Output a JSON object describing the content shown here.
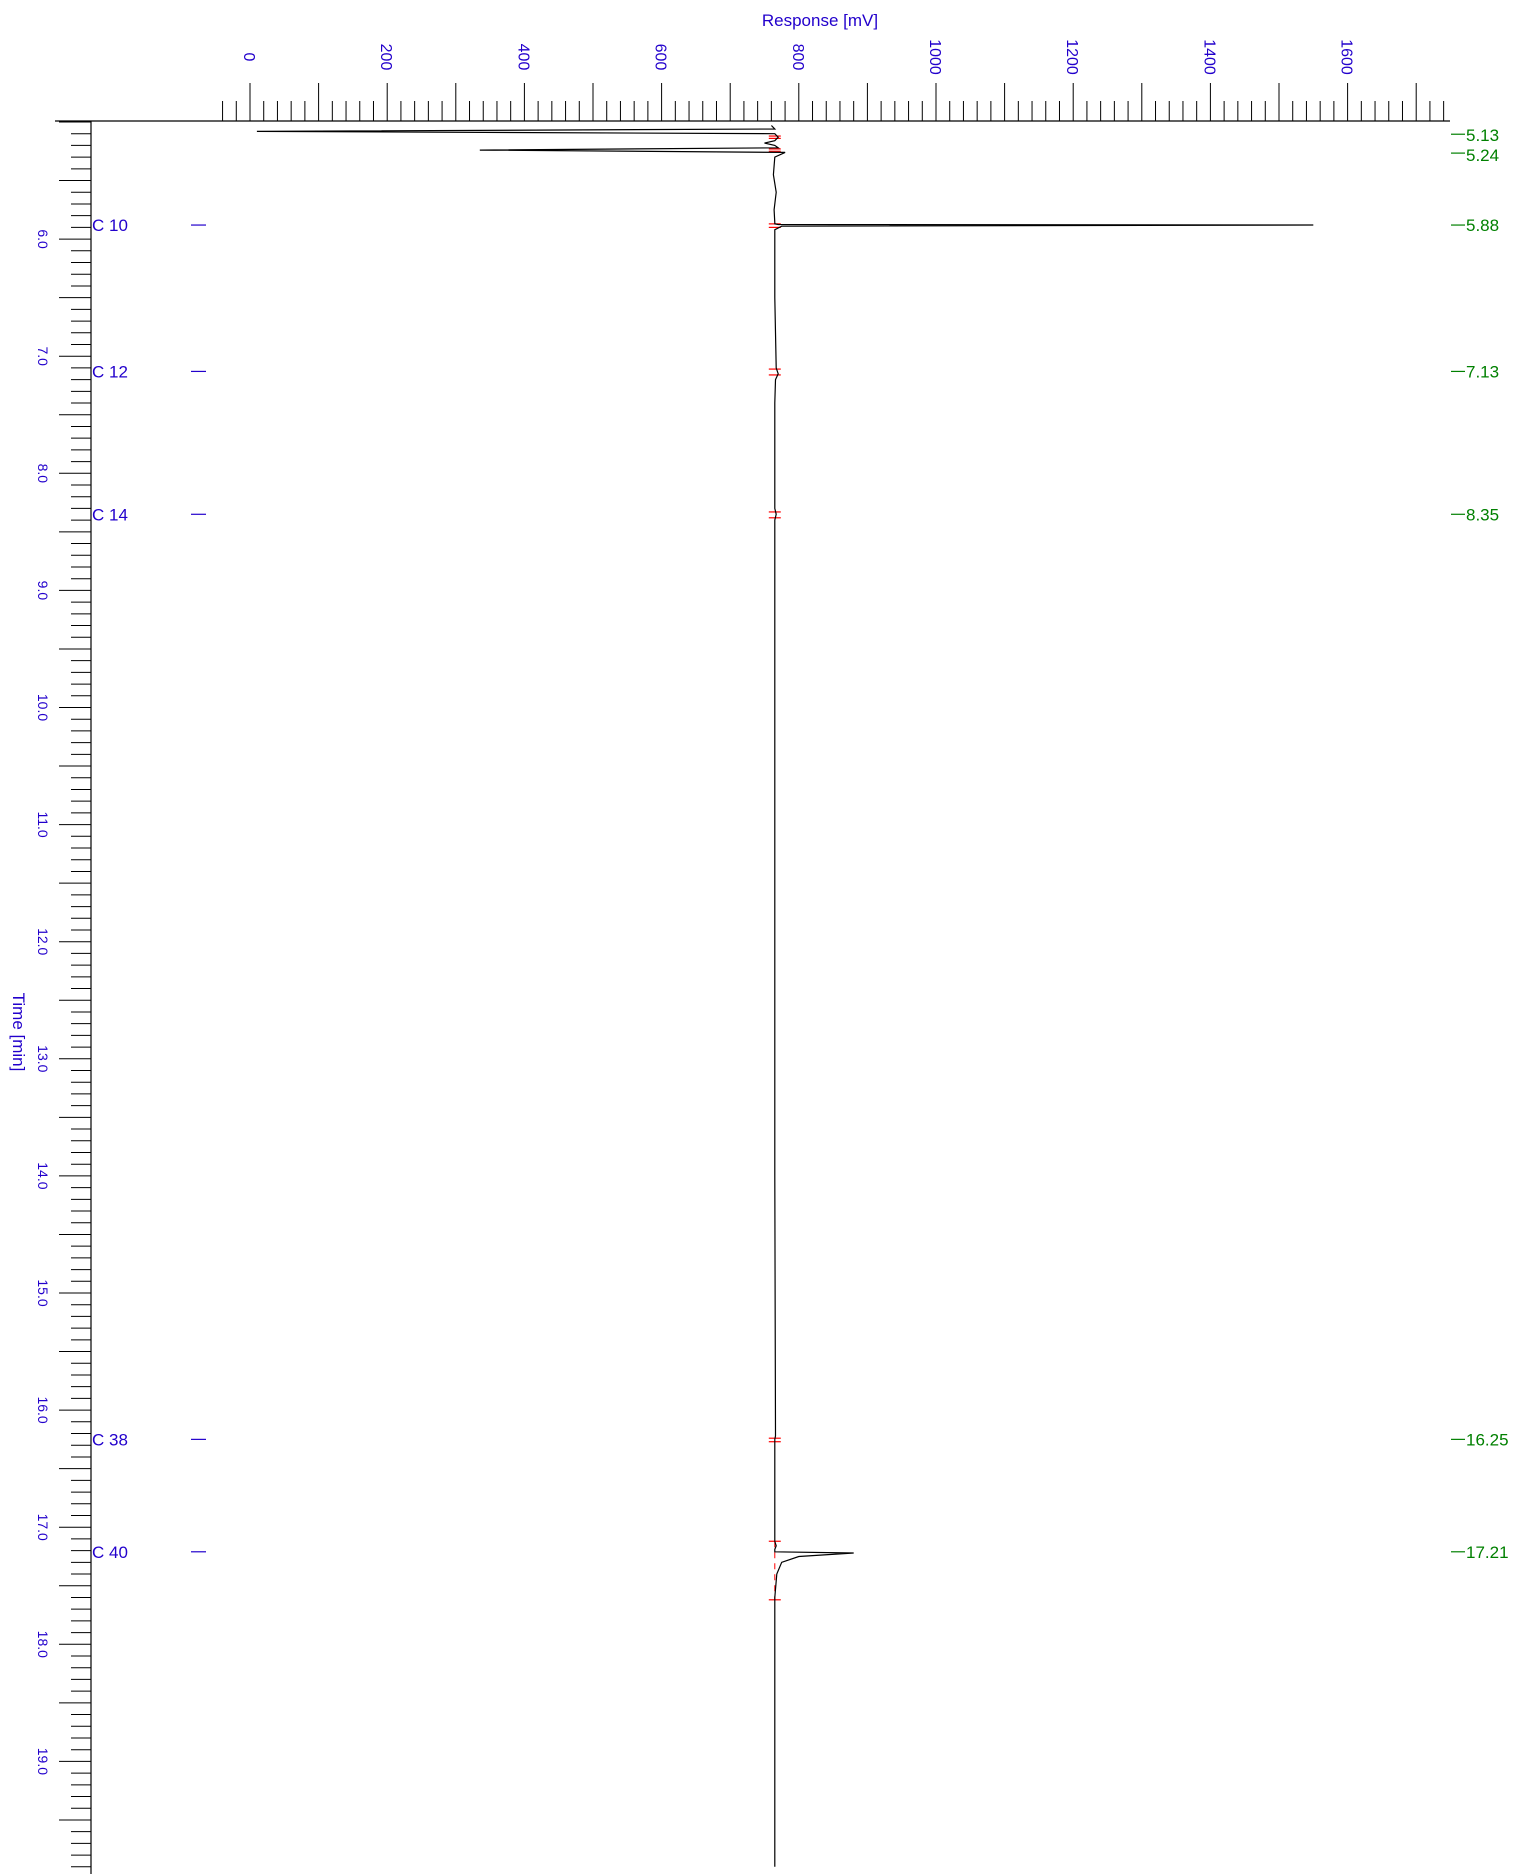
{
  "chart_data": {
    "type": "line",
    "orientation": "vertical-time",
    "x_axis": {
      "title": "Response [mV]",
      "range": [
        -40,
        1750
      ],
      "ticks": [
        0,
        200,
        400,
        600,
        800,
        1000,
        1200,
        1400,
        1600
      ],
      "tick_labels": [
        "0",
        "200",
        "400",
        "600",
        "800",
        "1000",
        "1200",
        "1400",
        "1600"
      ]
    },
    "y_axis": {
      "title": "Time [min]",
      "range": [
        5.0,
        19.9
      ],
      "ticks": [
        6,
        7,
        8,
        9,
        10,
        11,
        12,
        13,
        14,
        15,
        16,
        17,
        18,
        19
      ],
      "tick_labels": [
        "6.0",
        "7.0",
        "8.0",
        "9.0",
        "10.0",
        "11.0",
        "12.0",
        "13.0",
        "14.0",
        "15.0",
        "16.0",
        "17.0",
        "18.0",
        "19.0"
      ]
    },
    "baseline_mv": 765,
    "compounds": [
      {
        "label": "C 10",
        "time": 5.88
      },
      {
        "label": "C 12",
        "time": 7.13
      },
      {
        "label": "C 14",
        "time": 8.35
      },
      {
        "label": "C 38",
        "time": 16.25
      },
      {
        "label": "C 40",
        "time": 17.21
      }
    ],
    "peak_labels": [
      "5.13",
      "5.24",
      "5.88",
      "7.13",
      "8.35",
      "16.25",
      "17.21"
    ],
    "peak_times": [
      5.13,
      5.24,
      5.88,
      7.13,
      8.35,
      16.25,
      17.21
    ],
    "series": [
      {
        "x": [
          760,
          765,
          10,
          765,
          770,
          765,
          750,
          765,
          770,
          335,
          780,
          765,
          763,
          767,
          764,
          765,
          765,
          770,
          1550,
          775,
          765,
          765,
          767,
          770,
          766,
          765,
          765,
          767,
          765,
          765,
          765,
          766,
          765,
          765,
          765,
          765,
          767,
          765,
          765,
          765,
          880,
          800,
          775,
          768,
          765,
          765,
          765
        ],
        "y": [
          5.03,
          5.06,
          5.08,
          5.1,
          5.13,
          5.16,
          5.18,
          5.2,
          5.22,
          5.24,
          5.26,
          5.3,
          5.45,
          5.6,
          5.75,
          5.86,
          5.87,
          5.875,
          5.88,
          5.89,
          5.92,
          6.5,
          7.1,
          7.15,
          7.2,
          7.4,
          8.3,
          8.35,
          8.4,
          10.0,
          14.0,
          16.22,
          16.25,
          16.28,
          17.0,
          17.12,
          17.16,
          17.19,
          17.2,
          17.21,
          17.22,
          17.25,
          17.3,
          17.4,
          17.6,
          18.5,
          19.9
        ]
      }
    ],
    "colors": {
      "axis_text": "#2200cc",
      "retention_time_labels": "#008000",
      "trace": "#000000",
      "integration_marks": "#ff0000"
    }
  }
}
